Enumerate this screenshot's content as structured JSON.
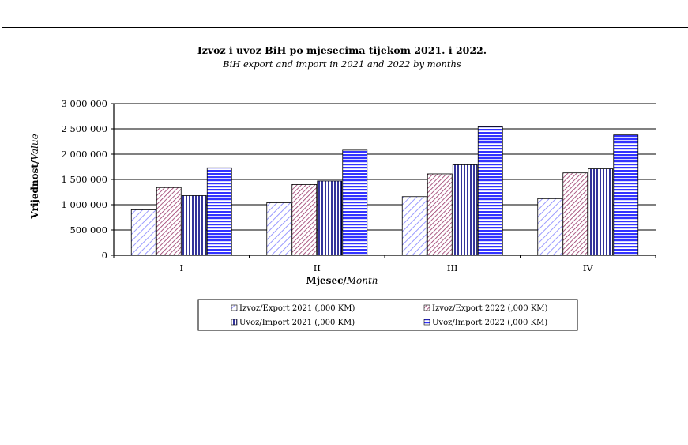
{
  "chart_data": {
    "type": "bar",
    "title": "Izvoz i uvoz BiH po mjesecima tijekom 2021. i 2022.",
    "subtitle": "BiH export and import in 2021 and 2022 by months",
    "xlabel_bold": "Mjesec/",
    "xlabel_italic": "Month",
    "ylabel_bold": "Vrijednost/",
    "ylabel_italic": "Value",
    "categories": [
      "I",
      "II",
      "III",
      "IV"
    ],
    "ylim": [
      0,
      3000000
    ],
    "yticks": [
      0,
      500000,
      1000000,
      1500000,
      2000000,
      2500000,
      3000000
    ],
    "ytick_labels": [
      "0",
      "500 000",
      "1 000 000",
      "1 500 000",
      "2 000 000",
      "2 500 000",
      "3 000 000"
    ],
    "grid": true,
    "legend_position": "bottom",
    "series": [
      {
        "name": "Izvoz/Export 2021 (,000 KM)",
        "values": [
          900000,
          1040000,
          1160000,
          1120000
        ],
        "pattern": "diagonal",
        "color": "#9999ff"
      },
      {
        "name": "Izvoz/Export 2022 (,000 KM)",
        "values": [
          1340000,
          1400000,
          1610000,
          1630000
        ],
        "pattern": "diagonal-dense",
        "color": "#993366"
      },
      {
        "name": "Uvoz/Import 2021 (,000 KM)",
        "values": [
          1180000,
          1470000,
          1790000,
          1710000
        ],
        "pattern": "vertical",
        "color": "#000080"
      },
      {
        "name": "Uvoz/Import 2022 (,000 KM)",
        "values": [
          1730000,
          2080000,
          2540000,
          2380000
        ],
        "pattern": "horizontal",
        "color": "#3333ff"
      }
    ]
  }
}
